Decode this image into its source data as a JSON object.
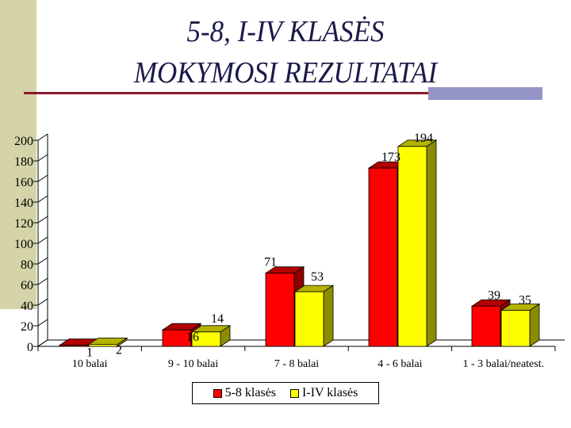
{
  "slide": {
    "title_line1": "5-8, I-IV KLASĖS",
    "title_line2": "MOKYMOSI REZULTATAI"
  },
  "colors": {
    "series1": "#ff0000",
    "series2": "#ffff00",
    "title": "#1a1a4a",
    "accent_rule": "#8b1c2c",
    "accent_block": "#9494c8",
    "side_panel": "#d4d4a8"
  },
  "chart_data": {
    "type": "bar",
    "style": "3d-clustered",
    "title": "",
    "xlabel": "",
    "ylabel": "",
    "ylim": [
      0,
      200
    ],
    "yticks": [
      0,
      20,
      40,
      60,
      80,
      100,
      120,
      140,
      160,
      180,
      200
    ],
    "categories": [
      "10 balai",
      "9 - 10 balai",
      "7 - 8 balai",
      "4 - 6 balai",
      "1 - 3 balai/neatest."
    ],
    "series": [
      {
        "name": "5-8 klasės",
        "values": [
          1,
          16,
          71,
          173,
          39
        ]
      },
      {
        "name": "I-IV klasės",
        "values": [
          2,
          14,
          53,
          194,
          35
        ]
      }
    ],
    "data_labels": true,
    "grid": false,
    "legend_position": "bottom"
  }
}
